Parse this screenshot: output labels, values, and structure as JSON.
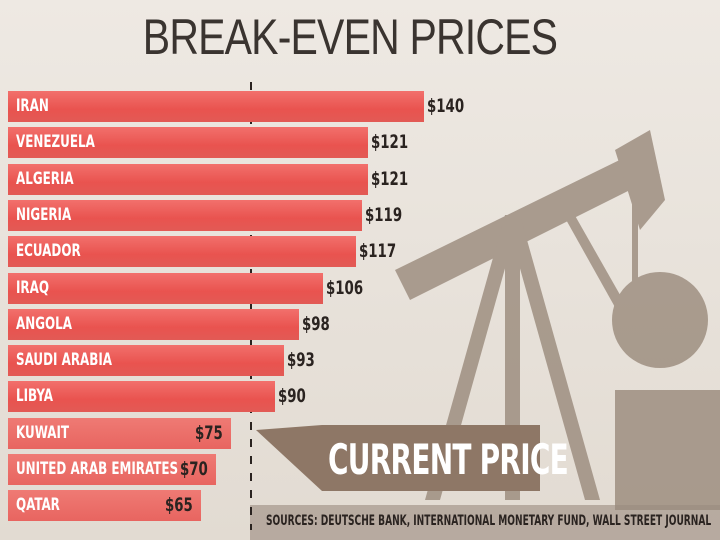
{
  "chart_data": {
    "type": "bar",
    "orientation": "horizontal",
    "title": "BREAK-EVEN PRICES",
    "categories": [
      "IRAN",
      "VENEZUELA",
      "ALGERIA",
      "NIGERIA",
      "ECUADOR",
      "IRAQ",
      "ANGOLA",
      "SAUDI ARABIA",
      "LIBYA",
      "KUWAIT",
      "UNITED ARAB EMIRATES",
      "QATAR"
    ],
    "values": [
      140,
      121,
      121,
      119,
      117,
      106,
      98,
      93,
      90,
      75,
      70,
      65
    ],
    "value_labels": [
      "$140",
      "$121",
      "$121",
      "$119",
      "$117",
      "$106",
      "$98",
      "$93",
      "$90",
      "$75",
      "$70",
      "$65"
    ],
    "reference_line": {
      "label": "CURRENT PRICE",
      "style": "dashed"
    },
    "xlim": [
      0,
      140
    ],
    "grid": false,
    "colors": {
      "bar": "#e9534f",
      "callout": "#8e7766",
      "text": "#2a2320"
    }
  },
  "sources": "SOURCES: DEUTSCHE BANK, INTERNATIONAL MONETARY FUND, WALL STREET JOURNAL"
}
